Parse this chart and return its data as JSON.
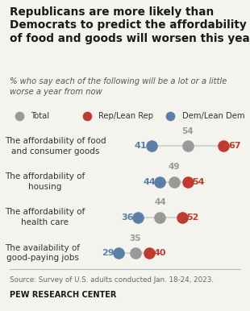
{
  "title": "Republicans are more likely than\nDemocrats to predict the affordability\nof food and goods will worsen this year",
  "subtitle": "% who say each of the following will be a lot or a little\nworse a year from now",
  "categories": [
    "The affordability of food\nand consumer goods",
    "The affordability of\nhousing",
    "The affordability of\nhealth care",
    "The availability of\ngood-paying jobs"
  ],
  "dem_values": [
    41,
    44,
    36,
    29
  ],
  "total_values": [
    54,
    49,
    44,
    35
  ],
  "rep_values": [
    67,
    54,
    52,
    40
  ],
  "dem_color": "#5b7fa6",
  "rep_color": "#bf3b2f",
  "total_color": "#999999",
  "source_text": "Source: Survey of U.S. adults conducted Jan. 18-24, 2023.",
  "footer_text": "PEW RESEARCH CENTER",
  "bg_color": "#f5f3ee",
  "dot_size": 90
}
